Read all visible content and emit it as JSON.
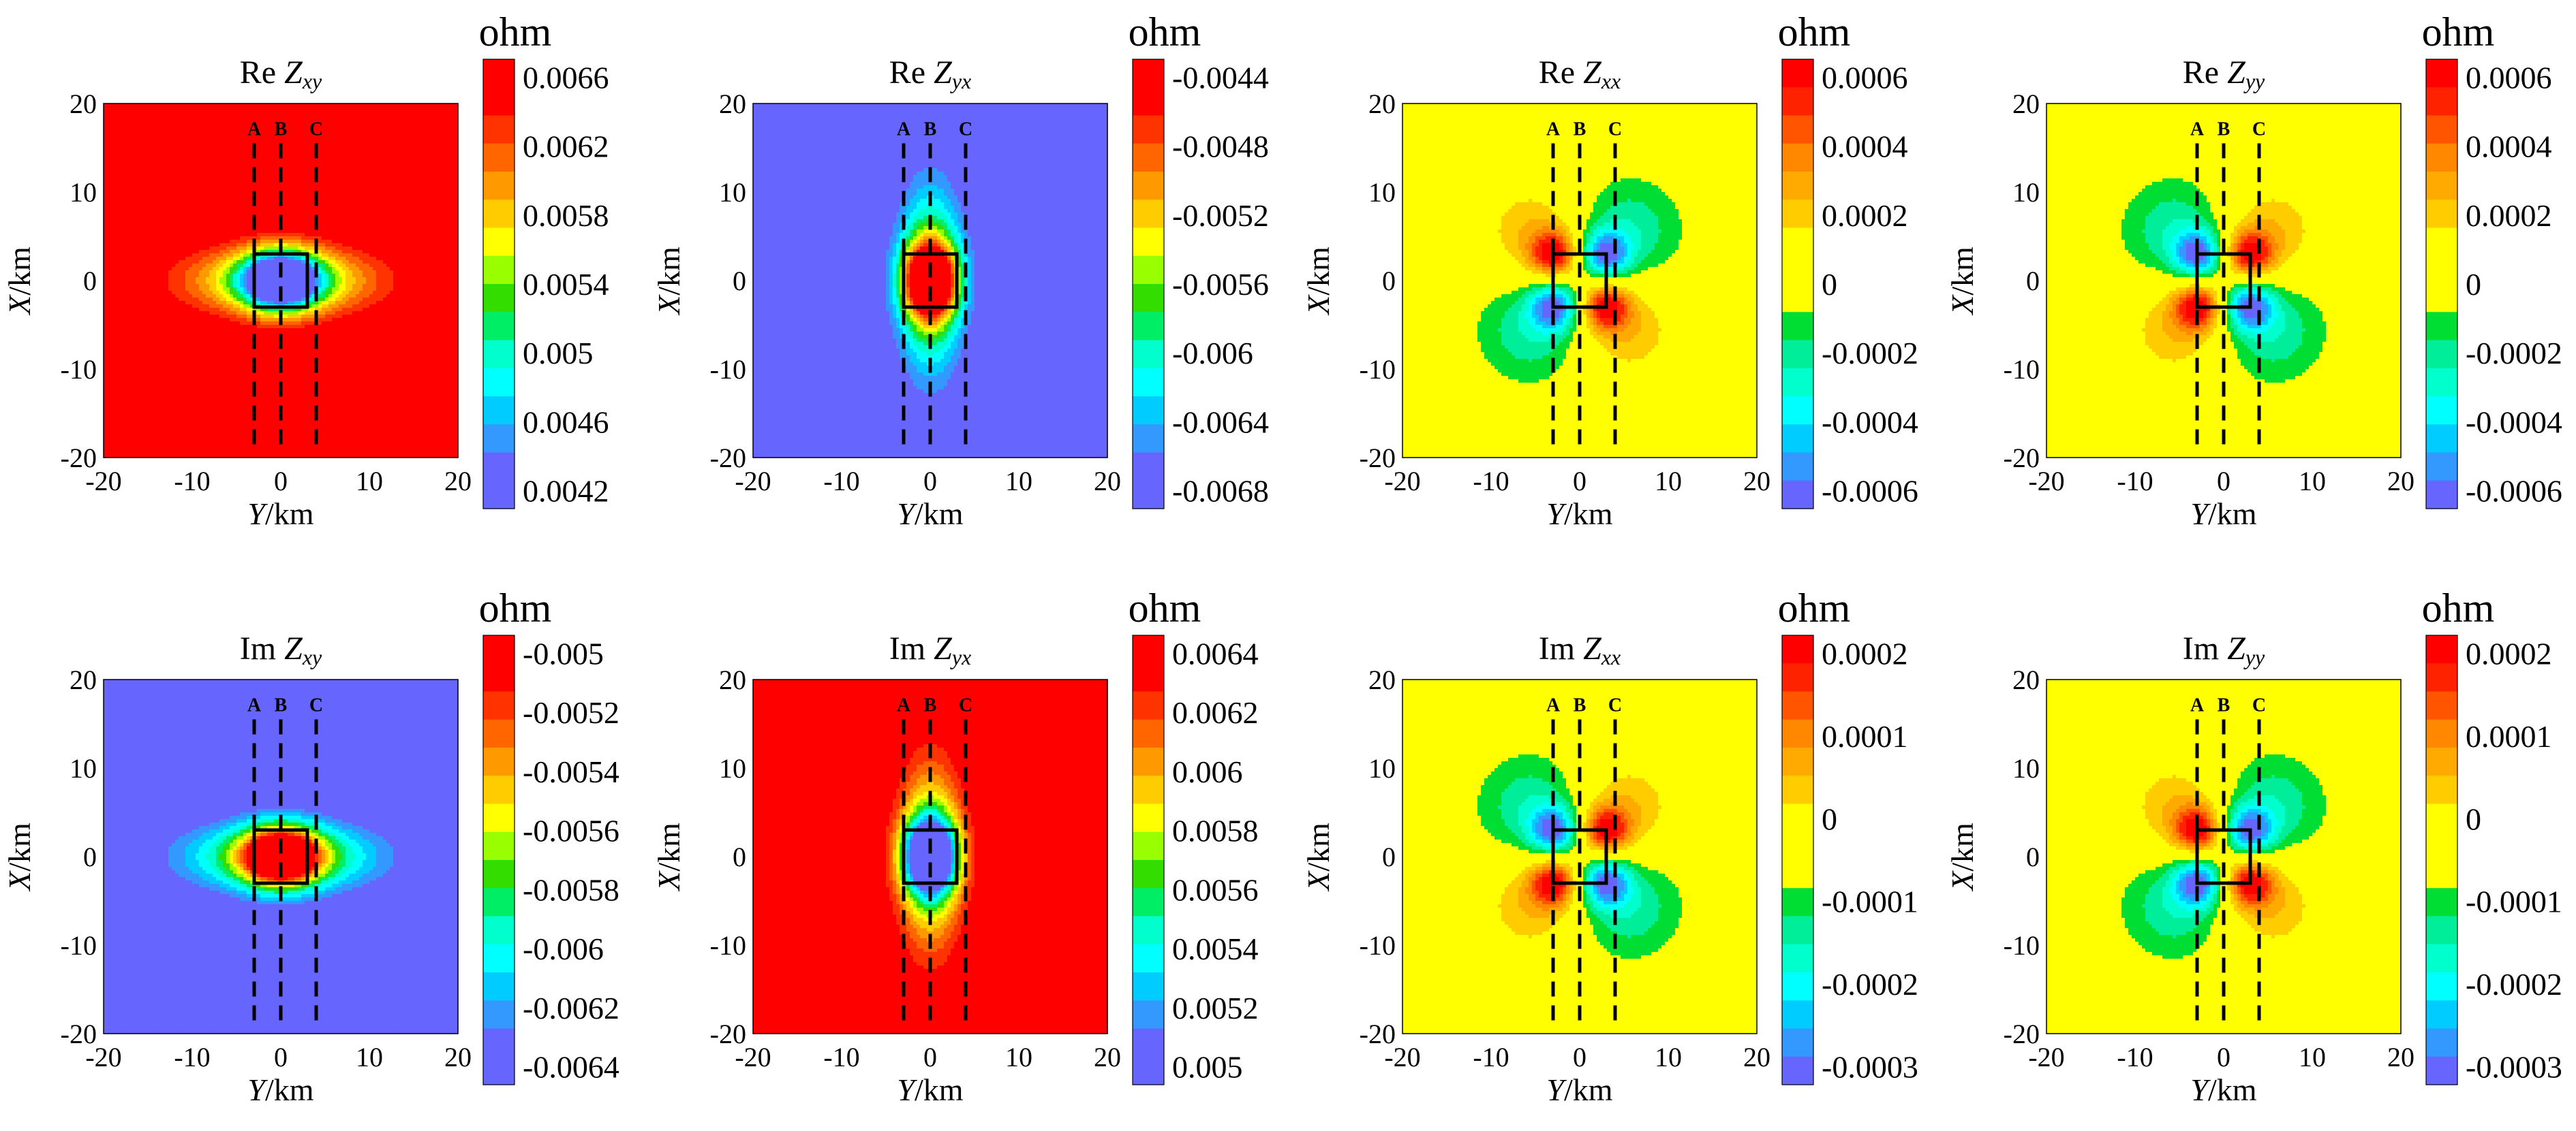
{
  "figure": {
    "x_axis_label": "Y/km",
    "y_axis_label": "X/km",
    "axis_ticks": [
      "-20",
      "-10",
      "0",
      "10",
      "20"
    ],
    "profile_labels": [
      "A",
      "B",
      "C"
    ],
    "profile_y_km": [
      -3,
      0,
      4
    ]
  },
  "chart_data": [
    {
      "type": "heatmap",
      "component": "Re",
      "subscript": "xy",
      "colorbar_unit": "ohm",
      "pattern": "xy",
      "sign": -1,
      "background_level": 1.0,
      "xlim": [
        -20,
        20
      ],
      "ylim": [
        -20,
        20
      ],
      "colorbar_ticks": [
        "0.0066",
        "0.0062",
        "0.0058",
        "0.0054",
        "0.005",
        "0.0046",
        "0.0042"
      ],
      "colorbar_colors": [
        "#ff0000",
        "#ff0000",
        "#ff3300",
        "#ff6600",
        "#ff9900",
        "#ffcc00",
        "#ffff00",
        "#99ff00",
        "#33dd00",
        "#00ee66",
        "#00ffcc",
        "#00ffff",
        "#00ccff",
        "#3399ff",
        "#6666ff",
        "#6666ff"
      ]
    },
    {
      "type": "heatmap",
      "component": "Re",
      "subscript": "yx",
      "colorbar_unit": "ohm",
      "pattern": "yx",
      "sign": 1,
      "background_level": 0.0,
      "xlim": [
        -20,
        20
      ],
      "ylim": [
        -20,
        20
      ],
      "colorbar_ticks": [
        "-0.0044",
        "-0.0048",
        "-0.0052",
        "-0.0056",
        "-0.006",
        "-0.0064",
        "-0.0068"
      ],
      "colorbar_colors": [
        "#ff0000",
        "#ff0000",
        "#ff3300",
        "#ff6600",
        "#ff9900",
        "#ffcc00",
        "#ffff00",
        "#99ff00",
        "#33dd00",
        "#00ee66",
        "#00ffcc",
        "#00ffff",
        "#00ccff",
        "#3399ff",
        "#6666ff",
        "#6666ff"
      ]
    },
    {
      "type": "heatmap",
      "component": "Re",
      "subscript": "xx",
      "colorbar_unit": "ohm",
      "pattern": "xx",
      "sign": 1,
      "background_level": 0.5,
      "xlim": [
        -20,
        20
      ],
      "ylim": [
        -20,
        20
      ],
      "colorbar_ticks": [
        "0.0006",
        "0.0004",
        "0.0002",
        "0",
        "-0.0002",
        "-0.0004",
        "-0.0006"
      ],
      "colorbar_colors": [
        "#ff0000",
        "#ff2200",
        "#ff5500",
        "#ff8800",
        "#ffaa00",
        "#ffcc00",
        "#ffff00",
        "#ffff00",
        "#ffff00",
        "#00dd33",
        "#00ee99",
        "#00ffcc",
        "#00ffff",
        "#00ccff",
        "#3399ff",
        "#6666ff"
      ]
    },
    {
      "type": "heatmap",
      "component": "Re",
      "subscript": "yy",
      "colorbar_unit": "ohm",
      "pattern": "xx",
      "sign": -1,
      "background_level": 0.5,
      "xlim": [
        -20,
        20
      ],
      "ylim": [
        -20,
        20
      ],
      "colorbar_ticks": [
        "0.0006",
        "0.0004",
        "0.0002",
        "0",
        "-0.0002",
        "-0.0004",
        "-0.0006"
      ],
      "colorbar_colors": [
        "#ff0000",
        "#ff2200",
        "#ff5500",
        "#ff8800",
        "#ffaa00",
        "#ffcc00",
        "#ffff00",
        "#ffff00",
        "#ffff00",
        "#00dd33",
        "#00ee99",
        "#00ffcc",
        "#00ffff",
        "#00ccff",
        "#3399ff",
        "#6666ff"
      ]
    },
    {
      "type": "heatmap",
      "component": "Im",
      "subscript": "xy",
      "colorbar_unit": "ohm",
      "pattern": "xy",
      "sign": 1,
      "background_level": 0.0,
      "xlim": [
        -20,
        20
      ],
      "ylim": [
        -20,
        20
      ],
      "colorbar_ticks": [
        "-0.005",
        "-0.0052",
        "-0.0054",
        "-0.0056",
        "-0.0058",
        "-0.006",
        "-0.0062",
        "-0.0064"
      ],
      "colorbar_colors": [
        "#ff0000",
        "#ff0000",
        "#ff3300",
        "#ff6600",
        "#ff9900",
        "#ffcc00",
        "#ffff00",
        "#99ff00",
        "#33dd00",
        "#00ee66",
        "#00ffcc",
        "#00ffff",
        "#00ccff",
        "#3399ff",
        "#6666ff",
        "#6666ff"
      ]
    },
    {
      "type": "heatmap",
      "component": "Im",
      "subscript": "yx",
      "colorbar_unit": "ohm",
      "pattern": "yx",
      "sign": -1,
      "background_level": 1.0,
      "xlim": [
        -20,
        20
      ],
      "ylim": [
        -20,
        20
      ],
      "colorbar_ticks": [
        "0.0064",
        "0.0062",
        "0.006",
        "0.0058",
        "0.0056",
        "0.0054",
        "0.0052",
        "0.005"
      ],
      "colorbar_colors": [
        "#ff0000",
        "#ff0000",
        "#ff3300",
        "#ff6600",
        "#ff9900",
        "#ffcc00",
        "#ffff00",
        "#99ff00",
        "#33dd00",
        "#00ee66",
        "#00ffcc",
        "#00ffff",
        "#00ccff",
        "#3399ff",
        "#6666ff",
        "#6666ff"
      ]
    },
    {
      "type": "heatmap",
      "component": "Im",
      "subscript": "xx",
      "colorbar_unit": "ohm",
      "pattern": "xx",
      "sign": -1,
      "background_level": 0.5,
      "xlim": [
        -20,
        20
      ],
      "ylim": [
        -20,
        20
      ],
      "colorbar_ticks": [
        "0.0002",
        "0.0001",
        "0",
        "-0.0001",
        "-0.0002",
        "-0.0003"
      ],
      "colorbar_colors": [
        "#ff0000",
        "#ff2200",
        "#ff5500",
        "#ff8800",
        "#ffaa00",
        "#ffcc00",
        "#ffff00",
        "#ffff00",
        "#ffff00",
        "#00dd33",
        "#00ee99",
        "#00ffcc",
        "#00ffff",
        "#00ccff",
        "#3399ff",
        "#6666ff"
      ]
    },
    {
      "type": "heatmap",
      "component": "Im",
      "subscript": "yy",
      "colorbar_unit": "ohm",
      "pattern": "xx",
      "sign": 1,
      "background_level": 0.5,
      "xlim": [
        -20,
        20
      ],
      "ylim": [
        -20,
        20
      ],
      "colorbar_ticks": [
        "0.0002",
        "0.0001",
        "0",
        "-0.0001",
        "-0.0002",
        "-0.0003"
      ],
      "colorbar_colors": [
        "#ff0000",
        "#ff2200",
        "#ff5500",
        "#ff8800",
        "#ffaa00",
        "#ffcc00",
        "#ffff00",
        "#ffff00",
        "#ffff00",
        "#00dd33",
        "#00ee99",
        "#00ffcc",
        "#00ffff",
        "#00ccff",
        "#3399ff",
        "#6666ff"
      ]
    }
  ]
}
